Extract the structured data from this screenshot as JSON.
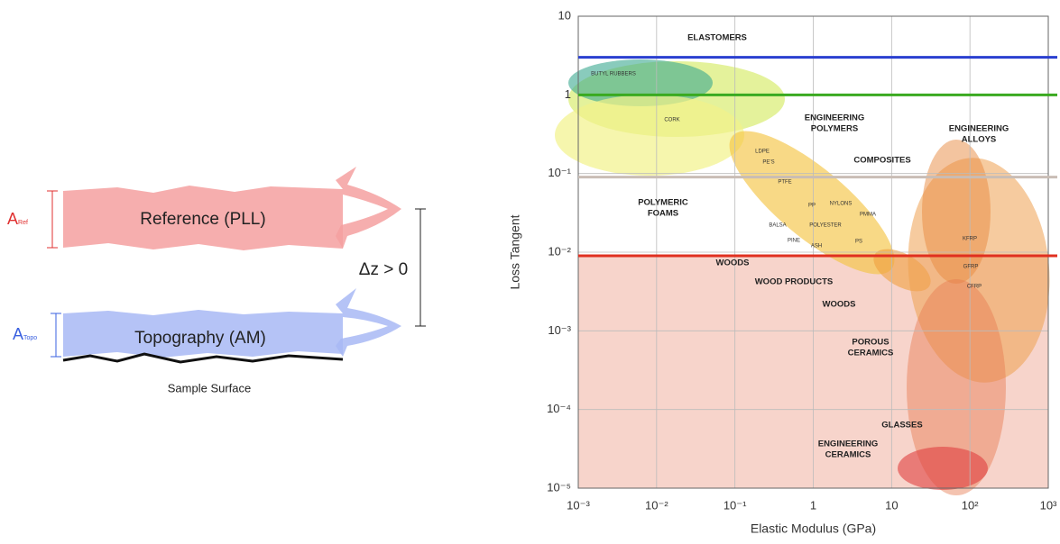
{
  "diagram": {
    "reference": {
      "label": "Reference (PLL)",
      "amplitude": "A",
      "amplitude_sub": "Ref"
    },
    "topography": {
      "label": "Topography (AM)",
      "amplitude": "A",
      "amplitude_sub": "Topo"
    },
    "offset": "Δz > 0",
    "surface": "Sample Surface"
  },
  "chart_data": {
    "type": "ashby",
    "x_label": "Elastic Modulus (GPa)",
    "y_label": "Loss Tangent",
    "log_x": true,
    "log_y": true,
    "grid": true,
    "xlim": [
      0.001,
      1000
    ],
    "ylim": [
      1e-05,
      10
    ],
    "xticks": [
      {
        "value": 0.001,
        "label": "10⁻³"
      },
      {
        "value": 0.01,
        "label": "10⁻²"
      },
      {
        "value": 0.1,
        "label": "10⁻¹"
      },
      1,
      10,
      {
        "value": 100,
        "label": "10²"
      },
      {
        "value": 1000,
        "label": "10³"
      }
    ],
    "yticks": [
      10,
      1,
      {
        "value": 0.1,
        "label": "10⁻¹"
      },
      {
        "value": 0.01,
        "label": "10⁻²"
      },
      {
        "value": 0.001,
        "label": "10⁻³"
      },
      {
        "value": 0.0001,
        "label": "10⁻⁴"
      },
      {
        "value": 1e-05,
        "label": "10⁻⁵"
      }
    ],
    "reference_lines": [
      {
        "value": 3,
        "color": "#2a3fd0"
      },
      {
        "value": 1,
        "color": "#3aaa20"
      },
      {
        "value": 0.09,
        "color": "#c9bdb5"
      },
      {
        "value": 0.009,
        "color": "#e03020",
        "shade_below": true
      }
    ],
    "regions": [
      {
        "lines": [
          "ELASTOMERS"
        ]
      },
      {
        "lines": [
          "POLYMERIC",
          "FOAMS"
        ]
      },
      {
        "lines": [
          "ENGINEERING",
          "POLYMERS"
        ]
      },
      {
        "lines": [
          "ENGINEERING",
          "ALLOYS"
        ]
      },
      {
        "lines": [
          "COMPOSITES"
        ]
      },
      {
        "lines": [
          "WOODS"
        ]
      },
      {
        "lines": [
          "WOOD PRODUCTS"
        ]
      },
      {
        "lines": [
          "WOODS"
        ]
      },
      {
        "lines": [
          "POROUS",
          "CERAMICS"
        ]
      },
      {
        "lines": [
          "GLASSES"
        ]
      },
      {
        "lines": [
          "ENGINEERING",
          "CERAMICS"
        ]
      }
    ],
    "materials": [
      "BUTYL RUBBERS",
      "CORK",
      "LDPE",
      "PE'S",
      "PTFE",
      "PP",
      "NYLONS",
      "PMMA",
      "POLYESTER",
      "PS",
      "BALSA",
      "PINE",
      "ASH",
      "KFRP",
      "GFRP",
      "CFRP"
    ]
  }
}
